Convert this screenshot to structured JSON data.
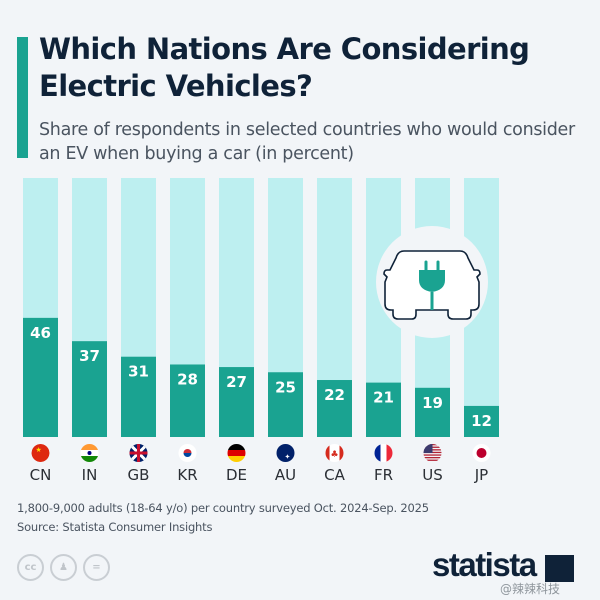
{
  "title": "Which Nations Are Considering Electric Vehicles?",
  "subtitle": "Share of respondents in selected countries who would consider an EV when buying a car (in percent)",
  "note": "1,800-9,000 adults (18-64 y/o) per country surveyed Oct. 2024-Sep. 2025",
  "source": "Source: Statista Consumer Insights",
  "license_icons": [
    "cc-icon",
    "by-icon",
    "nd-icon"
  ],
  "license_labels": [
    "cc",
    "",
    "="
  ],
  "brand": "statista",
  "watermark": "@辣辣科技",
  "colors": {
    "bar": "#1aa391",
    "track": "#bdeff0",
    "title": "#0f2238",
    "accent": "#1aa391"
  },
  "illustration": "electric-car-plug-icon",
  "chart_data": {
    "type": "bar",
    "categories": [
      "CN",
      "IN",
      "GB",
      "KR",
      "DE",
      "AU",
      "CA",
      "FR",
      "US",
      "JP"
    ],
    "values": [
      46,
      37,
      31,
      28,
      27,
      25,
      22,
      21,
      19,
      12
    ],
    "ylim": [
      0,
      100
    ],
    "grid": false,
    "data_labels": true,
    "flags": [
      "china-flag-icon",
      "india-flag-icon",
      "uk-flag-icon",
      "south-korea-flag-icon",
      "germany-flag-icon",
      "australia-flag-icon",
      "canada-flag-icon",
      "france-flag-icon",
      "usa-flag-icon",
      "japan-flag-icon"
    ]
  }
}
